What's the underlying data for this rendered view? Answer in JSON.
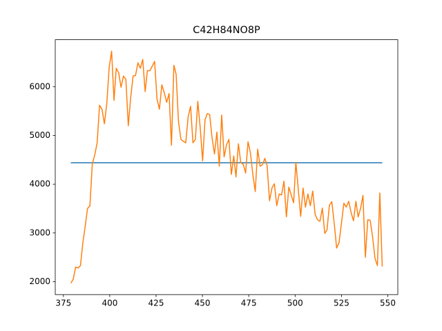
{
  "chart_data": {
    "type": "line",
    "title": "C42H84NO8P",
    "xlim": [
      370.6,
      555.4
    ],
    "xticks": [
      375,
      400,
      425,
      450,
      475,
      500,
      525,
      550
    ],
    "ylim": [
      1735,
      6965
    ],
    "yticks": [
      2000,
      3000,
      4000,
      5000,
      6000
    ],
    "series": [
      {
        "color": "#1f77b4",
        "x": [
          379,
          547
        ],
        "values": [
          4440,
          4440
        ]
      },
      {
        "color": "#ff7f0e",
        "x": [
          379.0,
          380.3,
          381.6,
          382.9,
          384.2,
          385.5,
          386.8,
          388.0,
          389.3,
          390.6,
          391.9,
          393.2,
          394.5,
          395.8,
          397.1,
          398.4,
          399.7,
          401.0,
          402.3,
          403.5,
          404.8,
          406.1,
          407.4,
          408.7,
          410.0,
          411.3,
          412.6,
          413.9,
          415.2,
          416.5,
          417.8,
          419.1,
          420.3,
          421.6,
          422.9,
          424.2,
          425.5,
          426.8,
          428.1,
          429.4,
          430.7,
          432.0,
          433.3,
          434.6,
          435.8,
          437.1,
          438.4,
          439.7,
          441.0,
          442.3,
          443.6,
          444.9,
          446.2,
          447.5,
          448.8,
          450.1,
          451.4,
          452.6,
          453.9,
          455.2,
          456.5,
          457.8,
          459.1,
          460.4,
          461.7,
          463.0,
          464.3,
          465.6,
          466.9,
          468.1,
          469.4,
          470.7,
          472.0,
          473.3,
          474.6,
          475.9,
          477.2,
          478.5,
          479.8,
          481.1,
          482.4,
          483.7,
          484.9,
          486.2,
          487.5,
          488.8,
          490.1,
          491.4,
          492.7,
          494.0,
          495.3,
          496.6,
          497.9,
          499.2,
          500.4,
          501.7,
          503.0,
          504.3,
          505.6,
          506.9,
          508.2,
          509.5,
          510.8,
          512.1,
          513.4,
          514.7,
          516.0,
          517.2,
          518.5,
          519.8,
          521.1,
          522.4,
          523.7,
          525.0,
          526.3,
          527.6,
          528.9,
          530.2,
          531.5,
          532.8,
          534.0,
          535.3,
          536.6,
          537.9,
          539.2,
          540.5,
          541.8,
          543.1,
          544.4,
          545.7,
          547.0
        ],
        "values": [
          1970,
          2050,
          2300,
          2280,
          2330,
          2800,
          3150,
          3500,
          3560,
          4420,
          4600,
          4850,
          5620,
          5540,
          5240,
          5650,
          6400,
          6730,
          5720,
          6380,
          6290,
          5990,
          6220,
          6150,
          5200,
          5780,
          6220,
          6230,
          6490,
          6380,
          6560,
          5900,
          6330,
          6330,
          6420,
          6520,
          5750,
          5540,
          6040,
          5880,
          5680,
          5860,
          4800,
          6440,
          6260,
          5280,
          4920,
          4880,
          4850,
          5380,
          5600,
          4850,
          4920,
          5700,
          5160,
          4480,
          5320,
          5450,
          5430,
          4950,
          4620,
          5070,
          4370,
          5420,
          4560,
          4810,
          4920,
          4200,
          4580,
          4150,
          4830,
          4440,
          4410,
          4230,
          4870,
          4640,
          4200,
          3850,
          4720,
          4370,
          4400,
          4530,
          4380,
          3660,
          3920,
          4010,
          3560,
          3800,
          3780,
          4060,
          3330,
          3940,
          3780,
          3620,
          4450,
          3900,
          3340,
          3920,
          3530,
          3800,
          3560,
          3860,
          3380,
          3270,
          3240,
          3510,
          2990,
          3060,
          3570,
          3640,
          3200,
          2690,
          2800,
          3200,
          3610,
          3530,
          3650,
          3420,
          3250,
          3650,
          3330,
          3500,
          3770,
          2500,
          3270,
          3260,
          2920,
          2480,
          2330,
          3820,
          2310
        ]
      }
    ]
  }
}
